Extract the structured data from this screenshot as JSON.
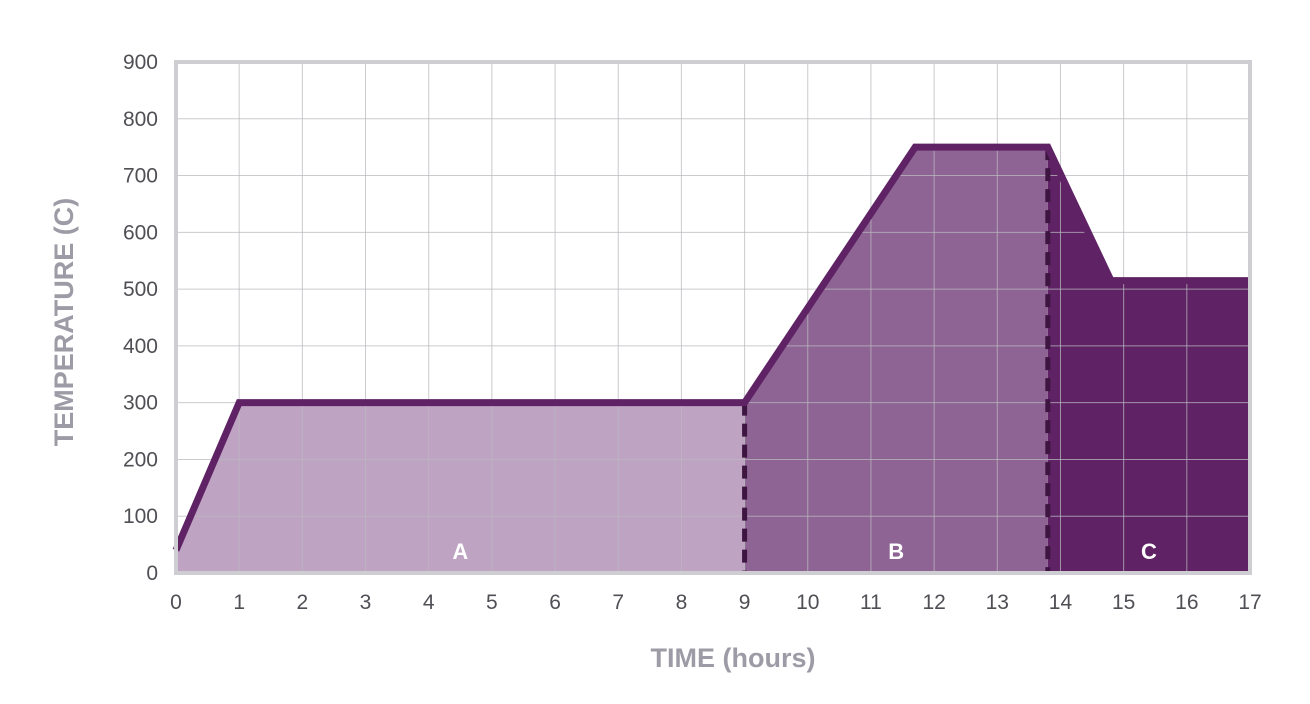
{
  "chart_data": {
    "type": "area",
    "xlabel": "TIME (hours)",
    "ylabel": "TEMPERATURE (C)",
    "xlim": [
      0,
      17
    ],
    "ylim": [
      0,
      900
    ],
    "x_ticks": [
      0,
      1,
      2,
      3,
      4,
      5,
      6,
      7,
      8,
      9,
      10,
      11,
      12,
      13,
      14,
      15,
      16,
      17
    ],
    "y_ticks": [
      0,
      100,
      200,
      300,
      400,
      500,
      600,
      700,
      800,
      900
    ],
    "grid": true,
    "series": [
      {
        "x": [
          0,
          1,
          9,
          11.7,
          13.8,
          14.8,
          17
        ],
        "y": [
          40,
          300,
          300,
          750,
          750,
          515,
          515
        ]
      }
    ],
    "regions": [
      {
        "label": "A",
        "x_start": 0,
        "x_end": 9,
        "color": "#bfa3c3"
      },
      {
        "label": "B",
        "x_start": 9,
        "x_end": 13.8,
        "color": "#8e6494"
      },
      {
        "label": "C",
        "x_start": 13.8,
        "x_end": 17,
        "color": "#5f2365"
      }
    ],
    "region_boundaries": [
      9,
      13.8
    ],
    "colors": {
      "line": "#5f2365",
      "frame": "#cdcdd2",
      "grid": "#b9b9bf",
      "axis_title": "#9d9ca6",
      "tick_label": "#4f4f55"
    }
  }
}
